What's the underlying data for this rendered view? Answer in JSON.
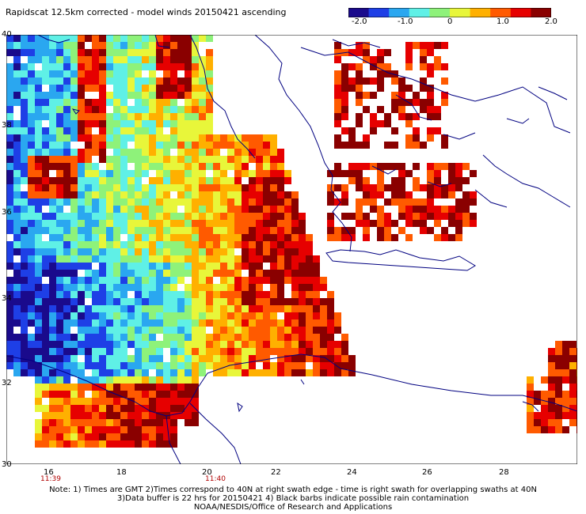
{
  "title": "Rapidscat 12.5km corrected - model winds 20150421 ascending",
  "colorbar": {
    "tick_labels": [
      "-2.0",
      "-1.0",
      "0",
      "1.0",
      "2.0"
    ],
    "min": -2.0,
    "max": 2.0,
    "colors": [
      "#1a0a8c",
      "#1e3fe6",
      "#2aa7f0",
      "#5ff0e6",
      "#8ef27a",
      "#e8f63a",
      "#ffb000",
      "#ff5a00",
      "#e60000",
      "#8a0000"
    ]
  },
  "axes": {
    "lat_labels": [
      "40",
      "38",
      "36",
      "34",
      "32",
      "30"
    ],
    "lon_labels": [
      "16",
      "18",
      "20",
      "22",
      "24",
      "26",
      "28"
    ],
    "lat_range": [
      30,
      40
    ],
    "lon_range": [
      15.0,
      29.7
    ]
  },
  "time_labels": [
    "11:39",
    "11:40"
  ],
  "coastline_color": "#000080",
  "notes": [
    "Note: 1) Times are GMT 2)Times correspond to 40N at right swath edge - time is right swath for overlapping swaths at 40N",
    "3)Data buffer is 22 hrs for 20150421 4) Black barbs indicate possible rain contamination",
    "NOAA/NESDIS/Office of Research and Applications"
  ]
}
